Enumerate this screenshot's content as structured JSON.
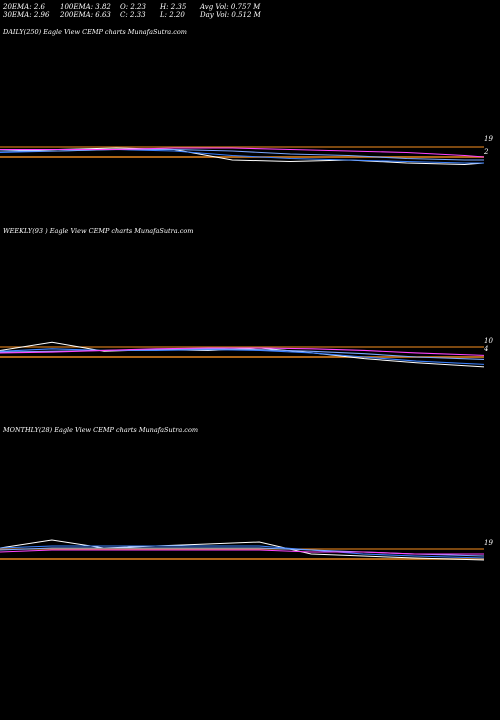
{
  "stats": {
    "ema20": "20EMA: 2.6",
    "ema30": "30EMA: 2.96",
    "ema100": "100EMA: 3.82",
    "ema200": "200EMA: 6.63",
    "open": "O: 2.23",
    "close": "C: 2.33",
    "high": "H: 2.35",
    "low": "L: 2.20",
    "avg_vol": "Avg Vol: 0.757  M",
    "day_vol": "Day Vol: 0.512  M"
  },
  "panels": [
    {
      "label": "DAILY(250) Eagle   View  CEMP charts MunafaSutra.com",
      "tick_labels": [
        "19",
        "2"
      ]
    },
    {
      "label": "WEEKLY(93                        ) Eagle   View  CEMP charts MunafaSutra.com",
      "tick_labels": [
        "10",
        "4"
      ]
    },
    {
      "label": "MONTHLY(28) Eagle   View  CEMP charts MunafaSutra.com",
      "tick_labels": [
        "19"
      ]
    }
  ],
  "colors": {
    "background": "#000000",
    "price": "#ffffff",
    "ema_short": "#3b82ff",
    "ema_mid": "#7aa6ff",
    "ema_long": "#ff44ff",
    "resistance": "#c8741a",
    "support": "#c8741a"
  },
  "chart_data": [
    {
      "type": "line",
      "title": "DAILY(250) Eagle   View  CEMP charts MunafaSutra.com",
      "x": [
        0,
        30,
        60,
        90,
        120,
        150,
        180,
        210,
        240,
        250
      ],
      "series": [
        {
          "values": [
            2.6,
            2.7,
            2.8,
            2.7,
            2.0,
            1.9,
            2.0,
            1.8,
            1.7,
            1.8
          ]
        },
        {
          "values": [
            2.5,
            2.6,
            2.7,
            2.6,
            2.3,
            2.1,
            2.0,
            1.9,
            1.8,
            1.8
          ]
        },
        {
          "values": [
            2.6,
            2.6,
            2.7,
            2.7,
            2.6,
            2.4,
            2.3,
            2.1,
            2.0,
            2.0
          ]
        },
        {
          "values": [
            2.7,
            2.7,
            2.7,
            2.8,
            2.8,
            2.7,
            2.6,
            2.5,
            2.3,
            2.2
          ]
        }
      ],
      "levels": [
        19,
        2
      ]
    },
    {
      "type": "line",
      "title": "WEEKLY(93                        ) Eagle   View  CEMP charts MunafaSutra.com",
      "x": [
        0,
        10,
        20,
        30,
        40,
        50,
        60,
        70,
        80,
        93
      ],
      "series": [
        {
          "values": [
            4.5,
            5.5,
            4.4,
            4.6,
            4.5,
            4.8,
            4.2,
            3.5,
            3.0,
            2.5
          ]
        },
        {
          "values": [
            4.4,
            4.7,
            4.5,
            4.5,
            4.6,
            4.5,
            4.2,
            3.7,
            3.2,
            2.8
          ]
        },
        {
          "values": [
            4.3,
            4.4,
            4.5,
            4.6,
            4.7,
            4.6,
            4.4,
            4.1,
            3.7,
            3.4
          ]
        },
        {
          "values": [
            4.2,
            4.3,
            4.5,
            4.7,
            4.8,
            4.8,
            4.7,
            4.5,
            4.2,
            3.9
          ]
        }
      ],
      "levels": [
        10,
        4
      ]
    },
    {
      "type": "line",
      "title": "MONTHLY(28) Eagle   View  CEMP charts MunafaSutra.com",
      "x": [
        0,
        3,
        6,
        9,
        12,
        15,
        18,
        21,
        24,
        28
      ],
      "series": [
        {
          "values": [
            19,
            23,
            19,
            20,
            21,
            22,
            16,
            15,
            14,
            13
          ]
        },
        {
          "values": [
            19,
            20,
            20,
            20,
            20,
            20,
            18,
            16,
            15,
            14
          ]
        },
        {
          "values": [
            18,
            19,
            19,
            19,
            19,
            19,
            18,
            17,
            16,
            15
          ]
        },
        {
          "values": [
            17,
            18,
            18,
            18,
            18,
            18,
            17,
            17,
            16,
            16
          ]
        }
      ],
      "levels": [
        19
      ]
    }
  ]
}
